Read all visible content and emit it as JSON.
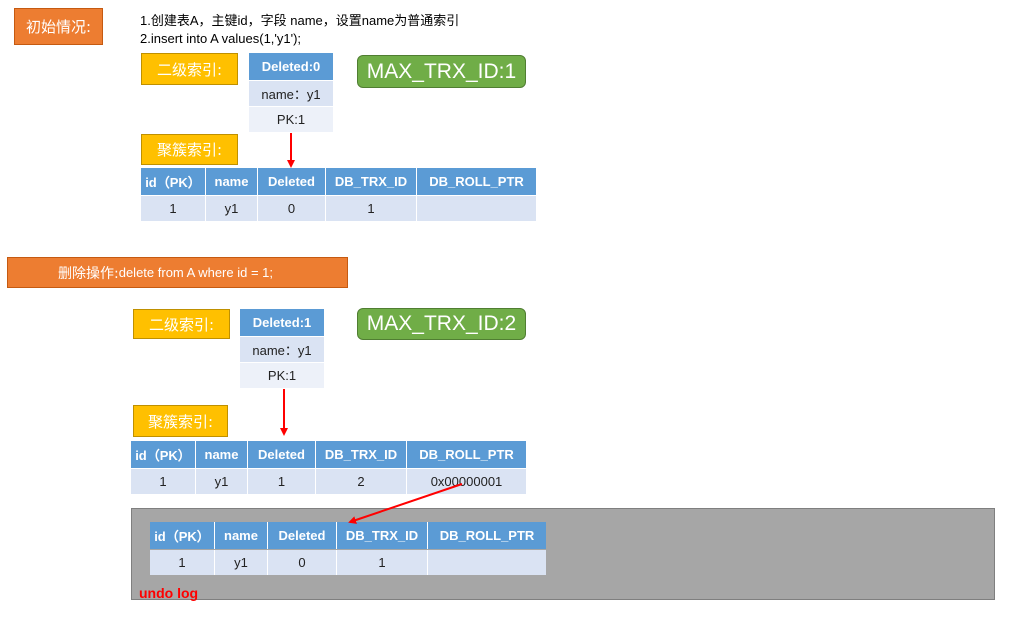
{
  "section1": {
    "label": "初始情况:",
    "desc_line1": "1.创建表A，主键id，字段 name，设置name为普通索引",
    "desc_line2": "2.insert into A values(1,'y1');",
    "secondary_label": "二级索引:",
    "secondary_rows": [
      "Deleted:0",
      "name：y1",
      "PK:1"
    ],
    "max_trx": "MAX_TRX_ID:1",
    "cluster_label": "聚簇索引:",
    "table": {
      "headers": [
        "id（PK）",
        "name",
        "Deleted",
        "DB_TRX_ID",
        "DB_ROLL_PTR"
      ],
      "row": [
        "1",
        "y1",
        "0",
        "1",
        ""
      ]
    }
  },
  "section2": {
    "label": "删除操作:",
    "sql": "delete from A where id = 1;",
    "secondary_label": "二级索引:",
    "secondary_rows": [
      "Deleted:1",
      "name：y1",
      "PK:1"
    ],
    "max_trx": "MAX_TRX_ID:2",
    "cluster_label": "聚簇索引:",
    "table": {
      "headers": [
        "id（PK）",
        "name",
        "Deleted",
        "DB_TRX_ID",
        "DB_ROLL_PTR"
      ],
      "row": [
        "1",
        "y1",
        "1",
        "2",
        "0x00000001"
      ]
    }
  },
  "undo": {
    "label": "undo log",
    "table": {
      "headers": [
        "id（PK）",
        "name",
        "Deleted",
        "DB_TRX_ID",
        "DB_ROLL_PTR"
      ],
      "row": [
        "1",
        "y1",
        "0",
        "1",
        ""
      ]
    }
  },
  "colors": {
    "orange": "#ED7D31",
    "yellow": "#FFC000",
    "green": "#70AD47",
    "header_blue": "#5B9BD5",
    "cell_blue": "#DAE3F3",
    "arrow_red": "#FF0000",
    "undo_gray": "#A6A6A6"
  }
}
